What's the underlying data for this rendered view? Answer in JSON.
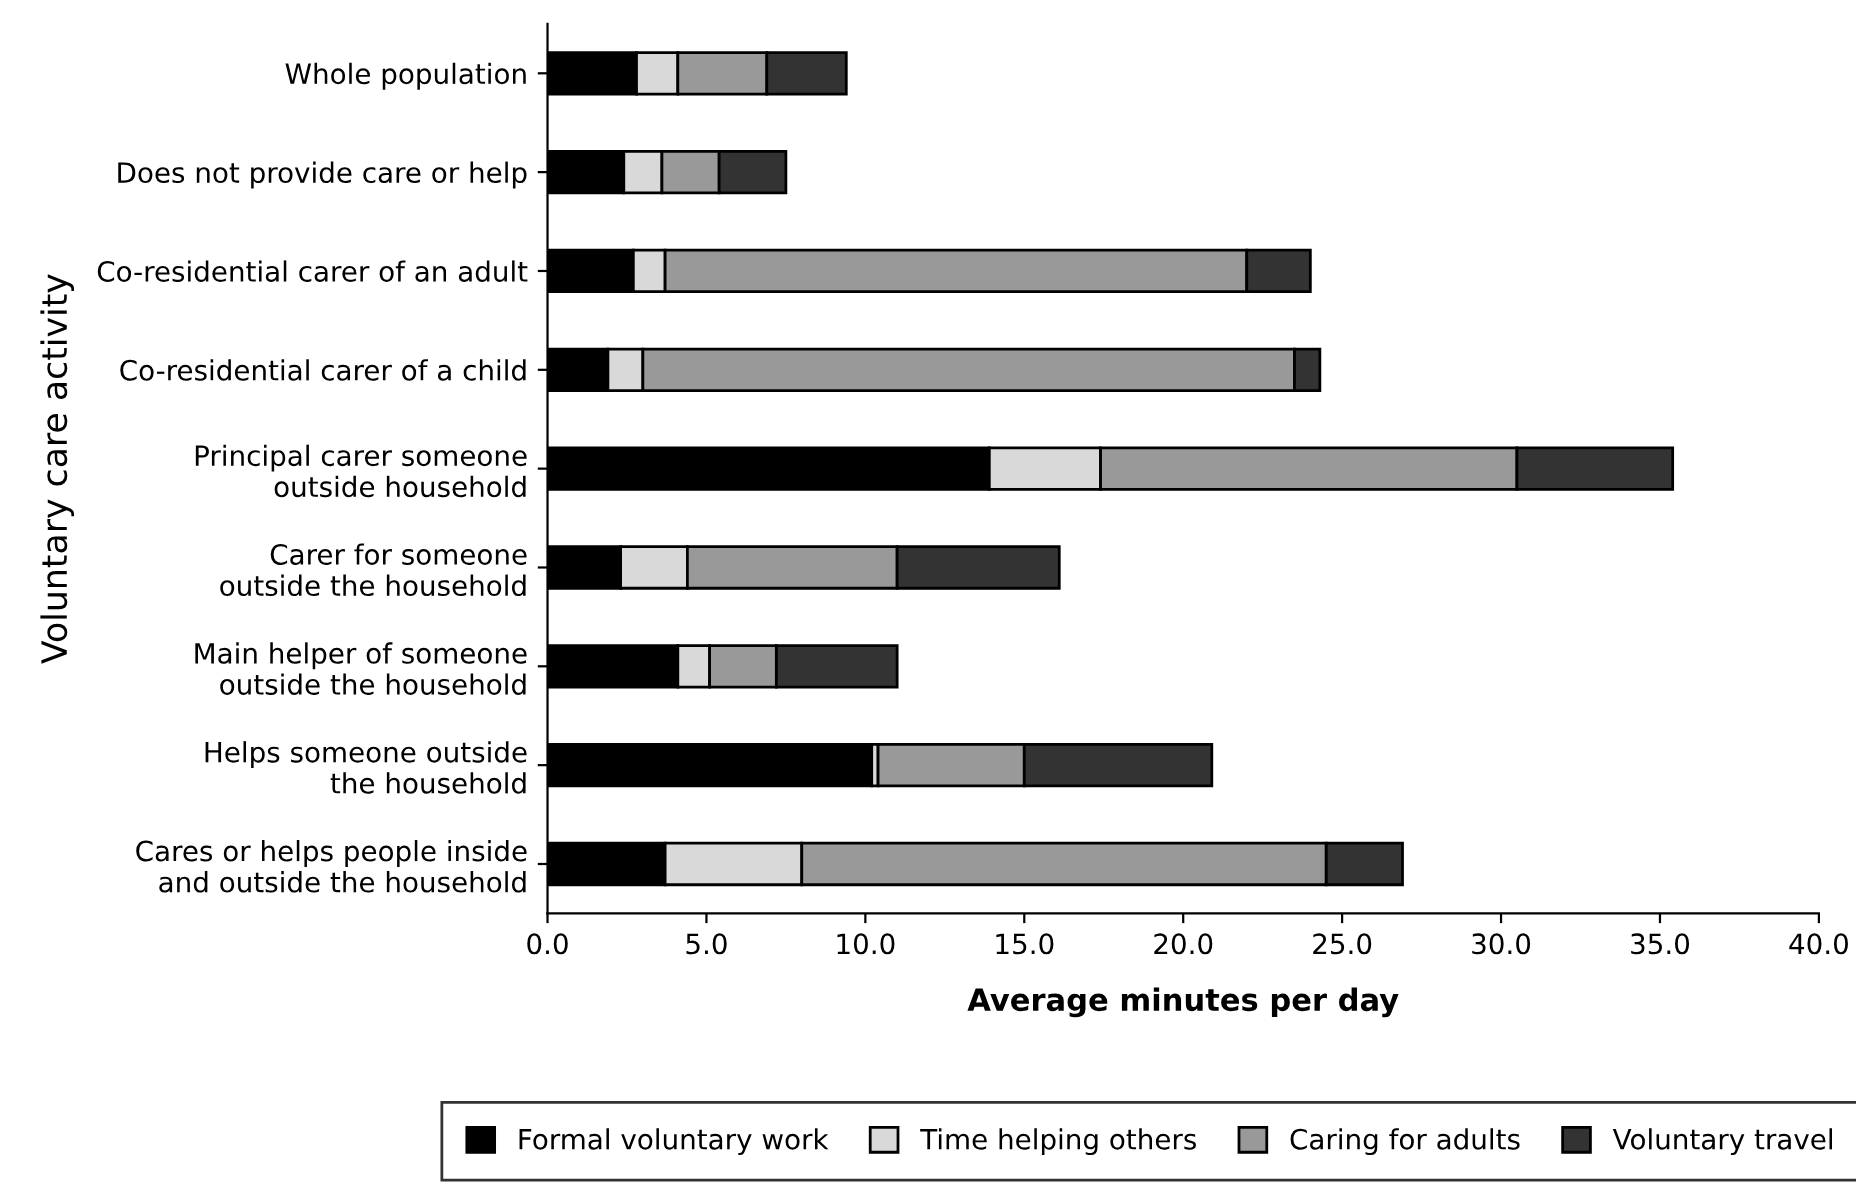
{
  "chart_data": {
    "type": "bar",
    "orientation": "horizontal",
    "stacked": true,
    "categories": [
      "Whole population",
      "Does not provide care or help",
      "Co-residential carer of an adult",
      "Co-residential carer of a child",
      "Principal carer someone\noutside household",
      "Carer for someone\noutside the household",
      "Main helper of someone\noutside the household",
      "Helps someone outside\nthe household",
      "Cares or helps people inside\nand outside the household"
    ],
    "series": [
      {
        "name": "Formal voluntary work",
        "color": "#000000",
        "values": [
          2.8,
          2.4,
          2.7,
          1.9,
          13.9,
          2.3,
          4.1,
          10.2,
          3.7
        ]
      },
      {
        "name": "Time helping others",
        "color": "#d9d9d9",
        "values": [
          1.3,
          1.2,
          1.0,
          1.1,
          3.5,
          2.1,
          1.0,
          0.2,
          4.3
        ]
      },
      {
        "name": "Caring for adults",
        "color": "#999999",
        "values": [
          2.8,
          1.8,
          18.3,
          20.5,
          13.1,
          6.6,
          2.1,
          4.6,
          16.5
        ]
      },
      {
        "name": "Voluntary travel",
        "color": "#333333",
        "values": [
          2.5,
          2.1,
          2.0,
          0.8,
          4.9,
          5.1,
          3.8,
          5.9,
          2.4
        ]
      }
    ],
    "xlim": [
      0,
      40
    ],
    "xticks": [
      {
        "value": 0,
        "label": "0.0"
      },
      {
        "value": 5,
        "label": "5.0"
      },
      {
        "value": 10,
        "label": "10.0"
      },
      {
        "value": 15,
        "label": "15.0"
      },
      {
        "value": 20,
        "label": "20.0"
      },
      {
        "value": 25,
        "label": "25.0"
      },
      {
        "value": 30,
        "label": "30.0"
      },
      {
        "value": 35,
        "label": "35.0"
      },
      {
        "value": 40,
        "label": "40.0"
      }
    ],
    "xlabel": "Average minutes per day",
    "ylabel": "Voluntary care activity",
    "grid": false,
    "legend": "bottom"
  }
}
